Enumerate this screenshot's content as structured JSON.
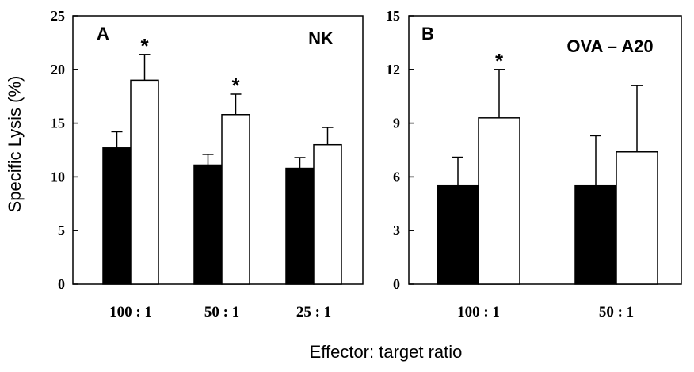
{
  "shared_ylabel": "Specific Lysis (%)",
  "shared_xlabel": "Effector: target ratio",
  "chart_data": [
    {
      "type": "bar",
      "panel_label": "A",
      "title": "NK",
      "categories": [
        "100 : 1",
        "50 : 1",
        "25 : 1"
      ],
      "ylim": [
        0,
        25
      ],
      "yticks": [
        0,
        5,
        10,
        15,
        20,
        25
      ],
      "series": [
        {
          "fill": "#000000",
          "values": [
            12.7,
            11.1,
            10.8
          ],
          "errors": [
            1.5,
            1.0,
            1.0
          ]
        },
        {
          "fill": "#ffffff",
          "values": [
            19.0,
            15.8,
            13.0
          ],
          "errors": [
            2.4,
            1.9,
            1.6
          ]
        }
      ],
      "significance": [
        {
          "category_index": 0,
          "series_index": 1,
          "mark": "*"
        },
        {
          "category_index": 1,
          "series_index": 1,
          "mark": "*"
        }
      ]
    },
    {
      "type": "bar",
      "panel_label": "B",
      "title": "OVA – A20",
      "categories": [
        "100 : 1",
        "50 : 1"
      ],
      "ylim": [
        0,
        15
      ],
      "yticks": [
        0,
        3,
        6,
        9,
        12,
        15
      ],
      "series": [
        {
          "fill": "#000000",
          "values": [
            5.5,
            5.5
          ],
          "errors": [
            1.6,
            2.8
          ]
        },
        {
          "fill": "#ffffff",
          "values": [
            9.3,
            7.4
          ],
          "errors": [
            2.7,
            3.7
          ]
        }
      ],
      "significance": [
        {
          "category_index": 0,
          "series_index": 1,
          "mark": "*"
        }
      ]
    }
  ]
}
